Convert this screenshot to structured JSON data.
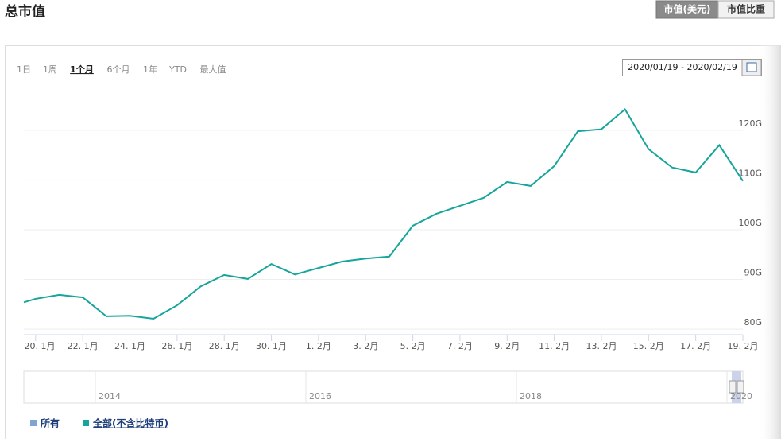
{
  "header": {
    "title": "总市值",
    "tabs": [
      "市值(美元)",
      "市值比重"
    ]
  },
  "range_buttons": [
    "1日",
    "1周",
    "1个月",
    "6个月",
    "1年",
    "YTD",
    "最大值"
  ],
  "date_range": "2020/01/19 - 2020/02/19",
  "chart_data": {
    "type": "line",
    "x": [
      -0.5,
      0,
      1,
      2,
      3,
      4,
      5,
      6,
      7,
      8,
      9,
      10,
      11,
      12,
      13,
      14,
      15,
      16,
      17,
      18,
      19,
      20,
      21,
      22,
      23,
      24,
      25,
      26,
      27,
      28,
      29,
      30
    ],
    "series": [
      {
        "name": "全部(不含比特币)",
        "color": "#16a59a",
        "values": [
          85.4,
          86.1,
          86.9,
          86.4,
          82.6,
          82.7,
          82.1,
          84.8,
          88.6,
          90.9,
          90.1,
          93.1,
          91.0,
          92.3,
          93.6,
          94.2,
          94.6,
          100.8,
          103.2,
          104.8,
          106.4,
          109.6,
          108.8,
          112.8,
          119.8,
          120.2,
          124.2,
          116.2,
          112.5,
          111.5,
          117.0,
          109.8
        ]
      }
    ],
    "other_legend": [
      {
        "name": "所有",
        "color": "#7ea6d1"
      }
    ],
    "xlim": [
      -0.5,
      30
    ],
    "xticks": [
      {
        "value": 0,
        "label": "20. 1月"
      },
      {
        "value": 2,
        "label": "22. 1月"
      },
      {
        "value": 4,
        "label": "24. 1月"
      },
      {
        "value": 6,
        "label": "26. 1月"
      },
      {
        "value": 8,
        "label": "28. 1月"
      },
      {
        "value": 10,
        "label": "30. 1月"
      },
      {
        "value": 12,
        "label": "1. 2月"
      },
      {
        "value": 14,
        "label": "3. 2月"
      },
      {
        "value": 16,
        "label": "5. 2月"
      },
      {
        "value": 18,
        "label": "7. 2月"
      },
      {
        "value": 20,
        "label": "9. 2月"
      },
      {
        "value": 22,
        "label": "11. 2月"
      },
      {
        "value": 24,
        "label": "13. 2月"
      },
      {
        "value": 26,
        "label": "15. 2月"
      },
      {
        "value": 28,
        "label": "17. 2月"
      },
      {
        "value": 30,
        "label": "19. 2月"
      }
    ],
    "ylim": [
      78.9,
      128.6
    ],
    "yticks": [
      {
        "value": 80,
        "label": "80G"
      },
      {
        "value": 90,
        "label": "90G"
      },
      {
        "value": 100,
        "label": "100G"
      },
      {
        "value": 110,
        "label": "110G"
      },
      {
        "value": 120,
        "label": "120G"
      }
    ],
    "grid": true,
    "navigator_labels": [
      "2014",
      "2016",
      "2018",
      "2020"
    ]
  }
}
